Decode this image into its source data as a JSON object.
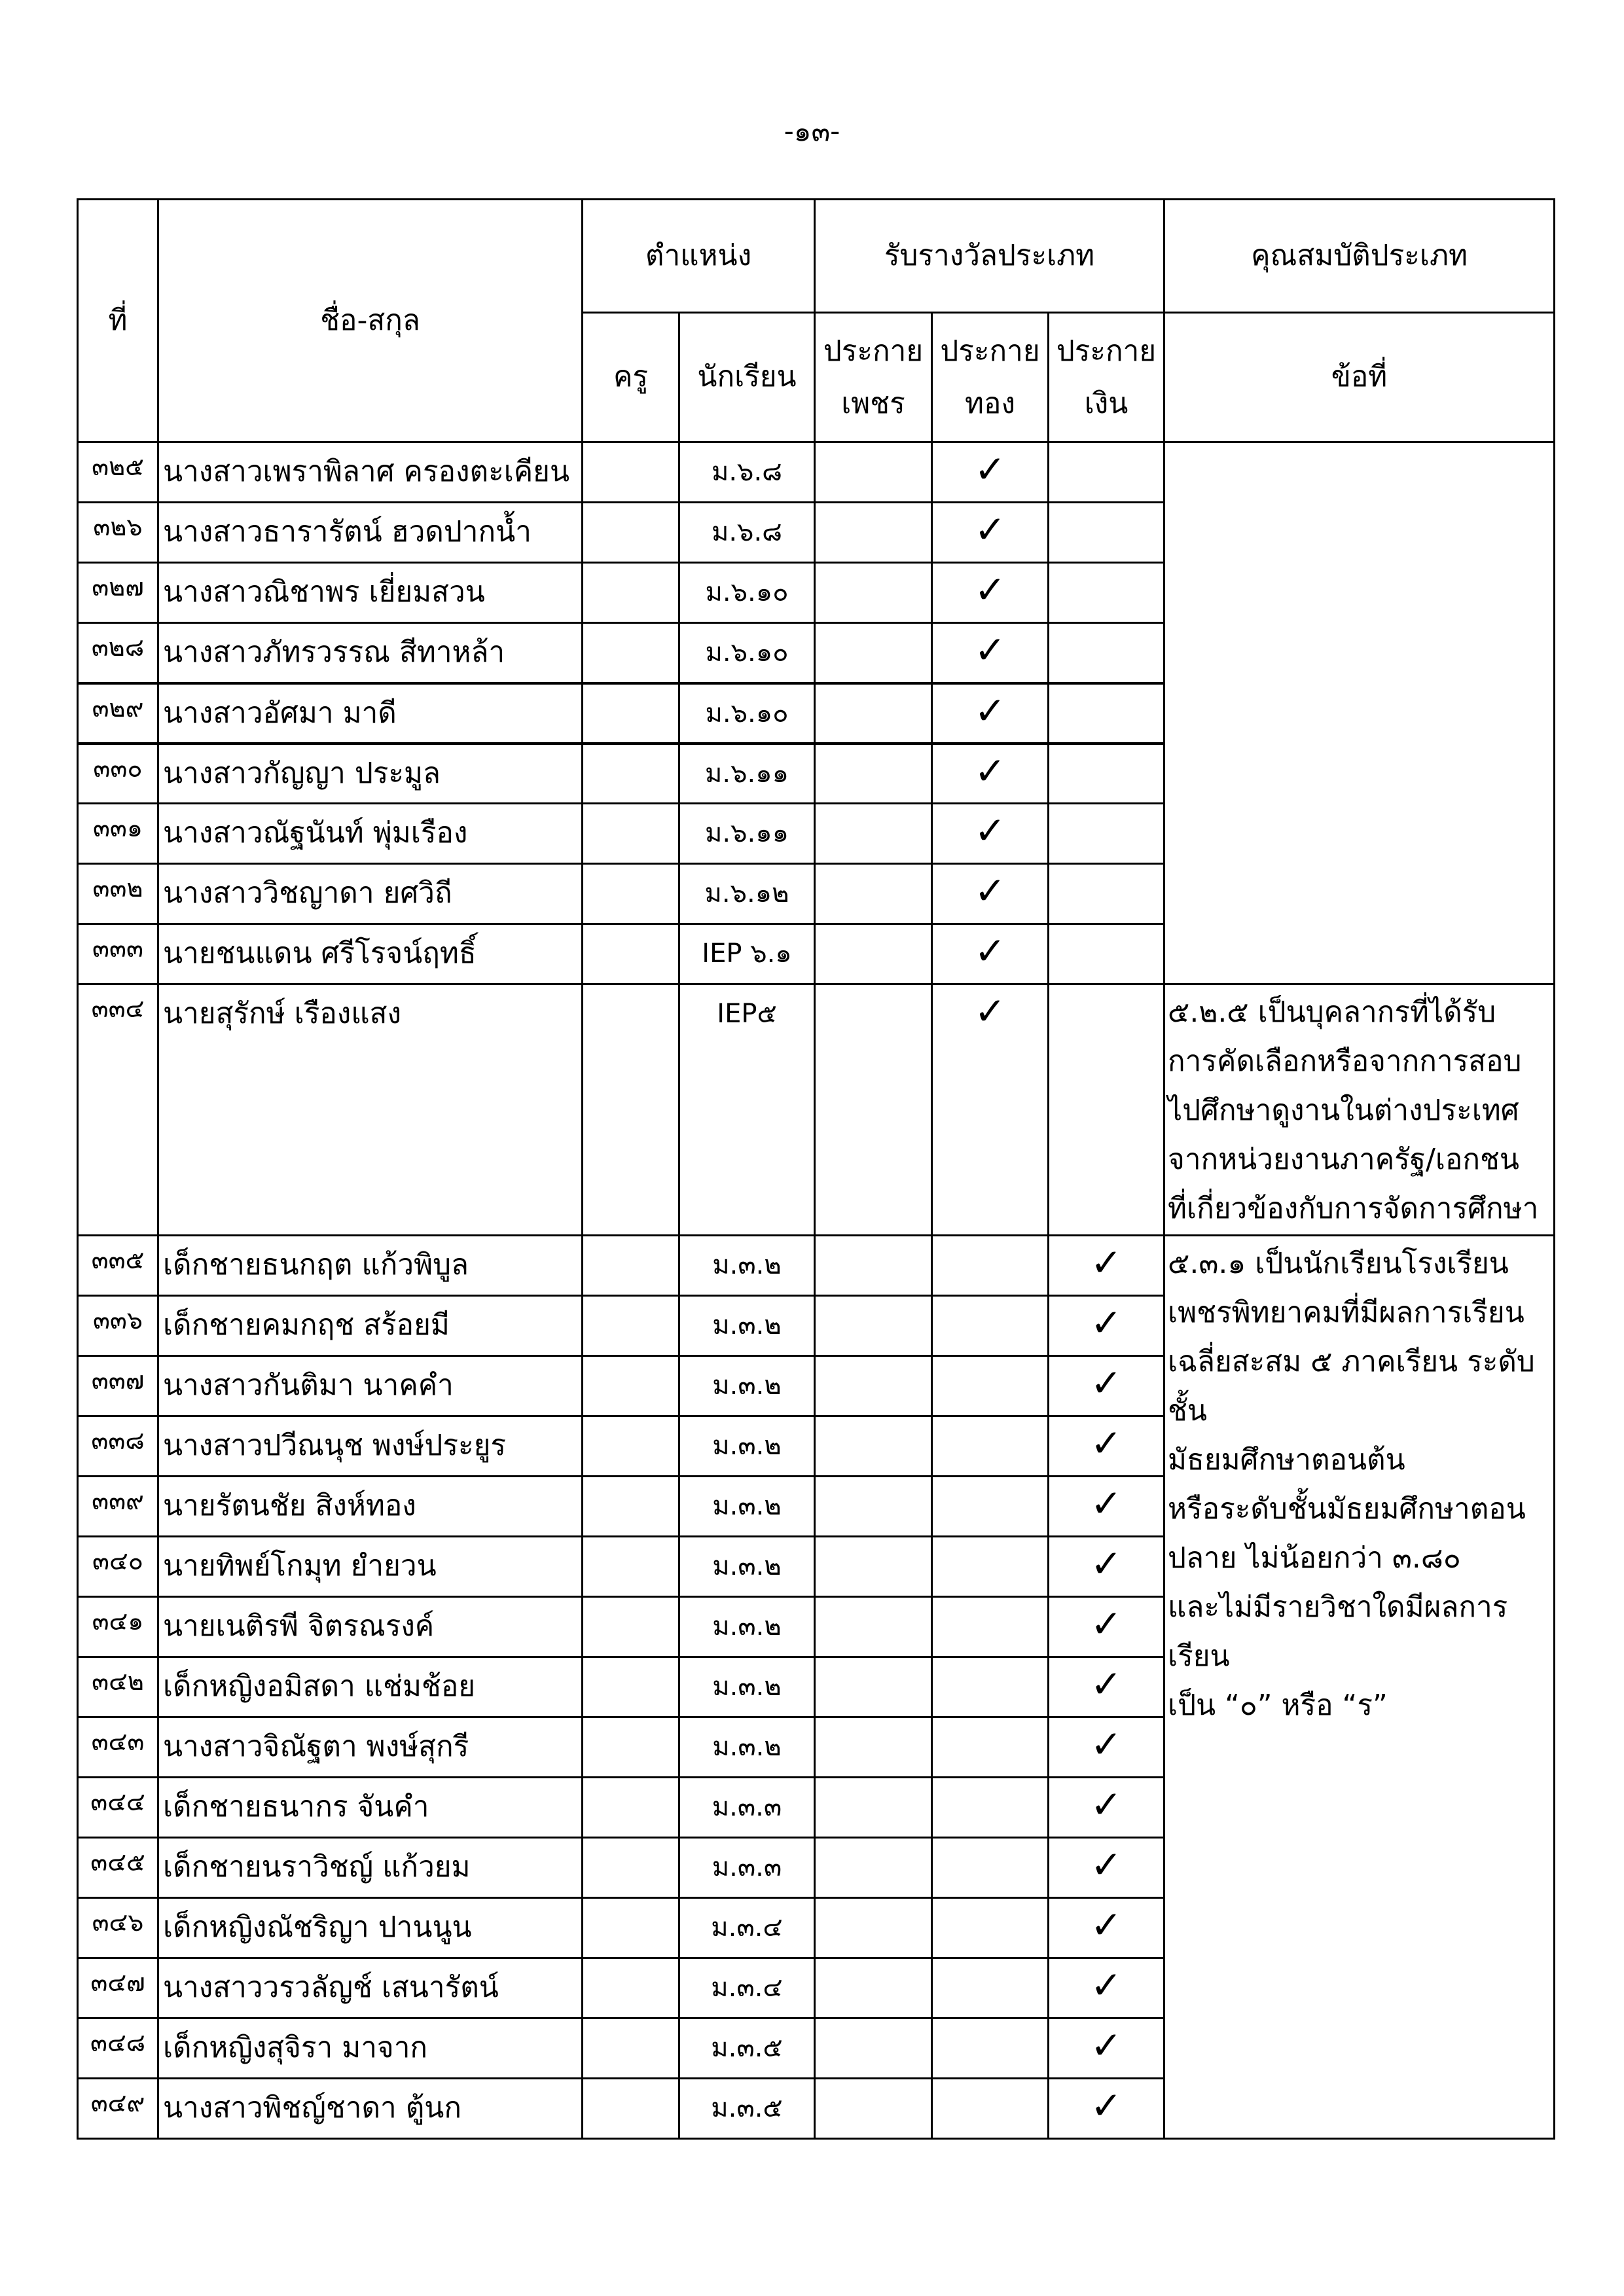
{
  "page_number": "-๑๓-",
  "headers": {
    "no": "ที่",
    "name": "ชื่อ-สกุล",
    "position": "ตำแหน่ง",
    "teacher": "ครู",
    "student": "นักเรียน",
    "award_type": "รับรางวัลประเภท",
    "diamond": "ประกาย\nเพชร",
    "gold": "ประกาย\nทอง",
    "silver": "ประกาย\nเงิน",
    "qualification": "คุณสมบัติประเภท",
    "clause": "ข้อที่"
  },
  "check_mark": "✓",
  "qualifications": {
    "q525": "๕.๒.๕ เป็นบุคลากรที่ได้รับ\nการคัดเลือกหรือจากการสอบ\nไปศึกษาดูงานในต่างประเทศ\nจากหน่วยงานภาครัฐ/เอกชน\nที่เกี่ยวข้องกับการจัดการศึกษา",
    "q531": "๕.๓.๑ เป็นนักเรียนโรงเรียน\nเพชรพิทยาคมที่มีผลการเรียน\nเฉลี่ยสะสม ๕ ภาคเรียน ระดับชั้น\nมัธยมศึกษาตอนต้น\nหรือระดับชั้นมัธยมศึกษาตอน\nปลาย ไม่น้อยกว่า ๓.๘๐\nและไม่มีรายวิชาใดมีผลการเรียน\nเป็น  “๐”  หรือ  “ร”"
  },
  "rows": [
    {
      "no": "๓๒๕",
      "name": "นางสาวเพราพิลาศ  ครองตะเคียน",
      "class": "ม.๖.๘",
      "award": "gold"
    },
    {
      "no": "๓๒๖",
      "name": "นางสาวธารารัตน์   ฮวดปากน้ำ",
      "class": "ม.๖.๘",
      "award": "gold"
    },
    {
      "no": "๓๒๗",
      "name": "นางสาวณิชาพร   เยี่ยมสวน",
      "class": "ม.๖.๑๐",
      "award": "gold"
    },
    {
      "no": "๓๒๘",
      "name": "นางสาวภัทรวรรณ   สีทาหล้า",
      "class": "ม.๖.๑๐",
      "award": "gold"
    },
    {
      "no": "๓๒๙",
      "name": "นางสาวอัศมา มาดี",
      "class": "ม.๖.๑๐",
      "award": "gold"
    },
    {
      "no": "๓๓๐",
      "name": "นางสาวกัญญา   ประมูล",
      "class": "ม.๖.๑๑",
      "award": "gold"
    },
    {
      "no": "๓๓๑",
      "name": "นางสาวณัฐนันท์  พุ่มเรือง",
      "class": "ม.๖.๑๑",
      "award": "gold"
    },
    {
      "no": "๓๓๒",
      "name": "นางสาววิชญาดา   ยศวิถี",
      "class": "ม.๖.๑๒",
      "award": "gold"
    },
    {
      "no": "๓๓๓",
      "name": "นายชนแดน  ศรีโรจน์ฤทธิ์",
      "class": "IEP ๖.๑",
      "award": "gold"
    },
    {
      "no": "๓๓๔",
      "name": "นายสุรักษ์ เรืองแสง",
      "class": "IEP๕",
      "award": "gold"
    },
    {
      "no": "๓๓๕",
      "name": "เด็กชายธนกฤต  แก้วพิบูล",
      "class": "ม.๓.๒",
      "award": "silver"
    },
    {
      "no": "๓๓๖",
      "name": "เด็กชายคมกฤช  สร้อยมี",
      "class": "ม.๓.๒",
      "award": "silver"
    },
    {
      "no": "๓๓๗",
      "name": "นางสาวกันติมา  นาคคำ",
      "class": "ม.๓.๒",
      "award": "silver"
    },
    {
      "no": "๓๓๘",
      "name": "นางสาวปวีณนุช  พงษ์ประยูร",
      "class": "ม.๓.๒",
      "award": "silver"
    },
    {
      "no": "๓๓๙",
      "name": "นายรัตนชัย  สิงห์ทอง",
      "class": "ม.๓.๒",
      "award": "silver"
    },
    {
      "no": "๓๔๐",
      "name": "นายทิพย์โกมุท  ยำยวน",
      "class": "ม.๓.๒",
      "award": "silver"
    },
    {
      "no": "๓๔๑",
      "name": "นายเนติรพี  จิตรณรงค์",
      "class": "ม.๓.๒",
      "award": "silver"
    },
    {
      "no": "๓๔๒",
      "name": "เด็กหญิงอมิสดา  แช่มช้อย",
      "class": "ม.๓.๒",
      "award": "silver"
    },
    {
      "no": "๓๔๓",
      "name": "นางสาวจิณัฐตา  พงษ์สุกรี",
      "class": "ม.๓.๒",
      "award": "silver"
    },
    {
      "no": "๓๔๔",
      "name": "เด็กชายธนากร  จันคำ",
      "class": "ม.๓.๓",
      "award": "silver"
    },
    {
      "no": "๓๔๕",
      "name": "เด็กชายนราวิชญ์  แก้วยม",
      "class": "ม.๓.๓",
      "award": "silver"
    },
    {
      "no": "๓๔๖",
      "name": "เด็กหญิงณัชริญา  ปานนูน",
      "class": "ม.๓.๔",
      "award": "silver"
    },
    {
      "no": "๓๔๗",
      "name": "นางสาววรวลัญช์  เสนารัตน์",
      "class": "ม.๓.๔",
      "award": "silver"
    },
    {
      "no": "๓๔๘",
      "name": "เด็กหญิงสุจิรา  มาจาก",
      "class": "ม.๓.๕",
      "award": "silver"
    },
    {
      "no": "๓๔๙",
      "name": "นางสาวพิชญ์ชาดา  ตู้นก",
      "class": "ม.๓.๕",
      "award": "silver"
    }
  ]
}
